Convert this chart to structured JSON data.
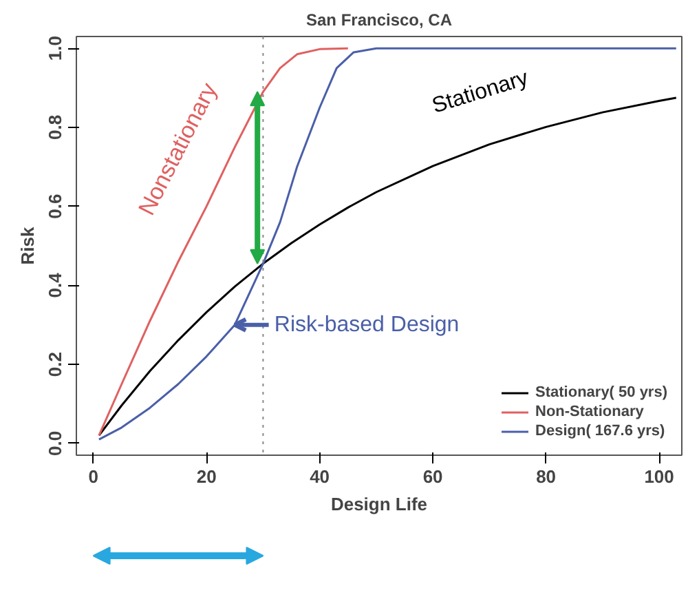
{
  "chart_data": {
    "type": "line",
    "title": "San Francisco, CA",
    "xlabel": "Design Life",
    "ylabel": "Risk",
    "xlim": [
      -3,
      104
    ],
    "ylim": [
      -0.03,
      1.03
    ],
    "xticks": [
      0,
      20,
      40,
      60,
      80,
      100
    ],
    "yticks": [
      {
        "value": 0,
        "label": "0.0"
      },
      0.2,
      0.4,
      0.6,
      0.8,
      {
        "value": 1,
        "label": "1.0"
      }
    ],
    "grid": false,
    "legend": "bottom right",
    "line_style": "solid",
    "marker": "none",
    "series": [
      {
        "name": "Stationary( 50 yrs)",
        "color": "#000000",
        "x": [
          1,
          5,
          10,
          15,
          20,
          25,
          30,
          35,
          40,
          45,
          50,
          60,
          70,
          80,
          90,
          100,
          103
        ],
        "values": [
          0.02,
          0.096,
          0.183,
          0.261,
          0.332,
          0.397,
          0.455,
          0.507,
          0.554,
          0.597,
          0.636,
          0.702,
          0.757,
          0.801,
          0.838,
          0.867,
          0.875
        ]
      },
      {
        "name": "Non-Stationary",
        "color": "#e06060",
        "x": [
          1,
          5,
          10,
          15,
          20,
          25,
          30,
          33,
          36,
          40,
          45
        ],
        "values": [
          0.02,
          0.15,
          0.31,
          0.46,
          0.6,
          0.75,
          0.89,
          0.95,
          0.985,
          0.998,
          1.0
        ]
      },
      {
        "name": "Design( 167.6 yrs)",
        "color": "#4a5fa8",
        "x": [
          1,
          5,
          10,
          15,
          20,
          25,
          30,
          33,
          36,
          40,
          43,
          46,
          50,
          103
        ],
        "values": [
          0.01,
          0.04,
          0.09,
          0.15,
          0.22,
          0.3,
          0.455,
          0.56,
          0.7,
          0.85,
          0.95,
          0.99,
          1.0,
          1.0
        ]
      }
    ],
    "ref_lines": [
      {
        "axis": "x",
        "value": 30,
        "color": "#888888",
        "line_style": "dotted"
      }
    ],
    "annotations": [
      "Nonstationary",
      "Stationary",
      {
        "text": "Risk-based Design",
        "x": 25,
        "y": 0.3
      }
    ]
  }
}
